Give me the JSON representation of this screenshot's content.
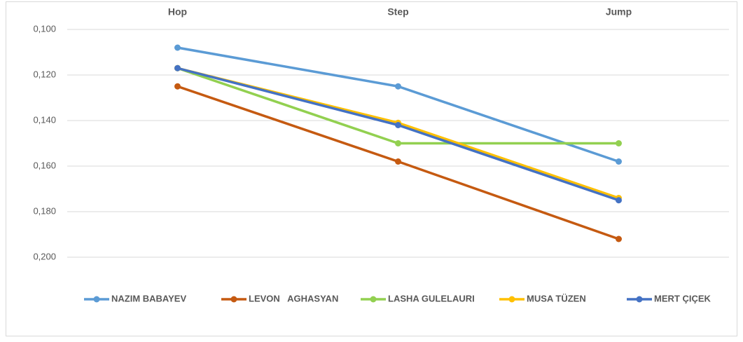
{
  "chart_data": {
    "type": "line",
    "categories": [
      "Hop",
      "Step",
      "Jump"
    ],
    "series": [
      {
        "name": "NAZIM BABAYEV",
        "color": "#5b9bd5",
        "values": [
          0.108,
          0.125,
          0.158
        ]
      },
      {
        "name": "LEVON   AGHASYAN",
        "color": "#c55a11",
        "values": [
          0.125,
          0.158,
          0.192
        ]
      },
      {
        "name": "LASHA GULELAURI",
        "color": "#92d050",
        "values": [
          0.117,
          0.15,
          0.15
        ]
      },
      {
        "name": "MUSA TÜZEN",
        "color": "#ffc000",
        "values": [
          0.117,
          0.141,
          0.174
        ]
      },
      {
        "name": "MERT ÇIÇEK",
        "color": "#4472c4",
        "values": [
          0.117,
          0.142,
          0.175
        ]
      }
    ],
    "ylim": [
      0.1,
      0.2
    ],
    "y_inverted": true,
    "yticks": [
      {
        "value": 0.1,
        "label": "0,100"
      },
      {
        "value": 0.12,
        "label": "0,120"
      },
      {
        "value": 0.14,
        "label": "0,140"
      },
      {
        "value": 0.16,
        "label": "0,160"
      },
      {
        "value": 0.18,
        "label": "0,180"
      },
      {
        "value": 0.2,
        "label": "0,200"
      }
    ],
    "grid": true,
    "legend": "bottom"
  }
}
